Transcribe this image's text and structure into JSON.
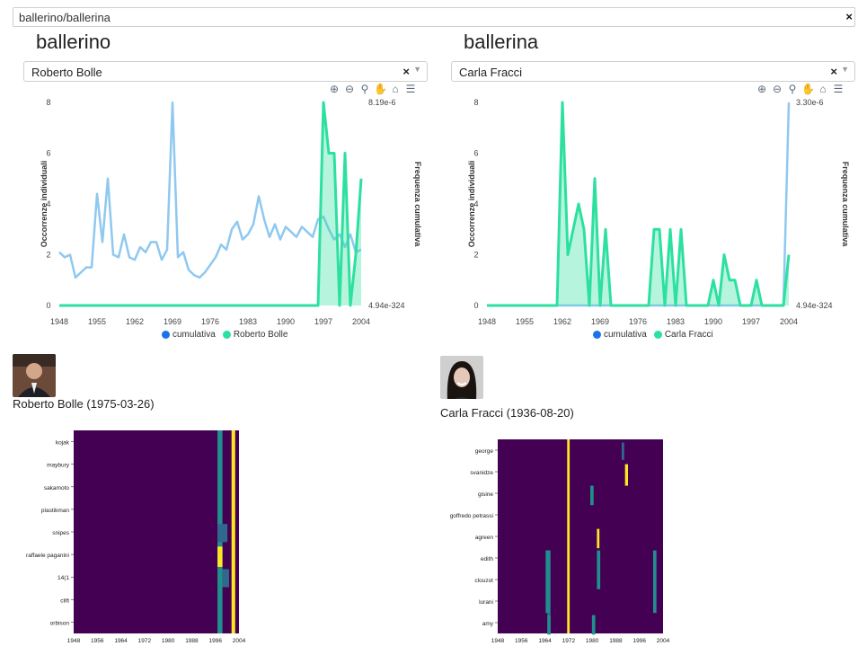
{
  "top_select": {
    "value": "ballerino/ballerina",
    "clear": "×"
  },
  "icons": [
    "zoom-in-icon",
    "zoom-out-icon",
    "zoom-select-icon",
    "pan-icon",
    "home-icon",
    "menu-icon"
  ],
  "colors": {
    "cumulative": "#8fc8f0",
    "series": "#2de0a0",
    "heat_bg": "#440154",
    "heat_mid": "#21908c",
    "heat_hi": "#fde725"
  },
  "left": {
    "title": "ballerino",
    "select": {
      "value": "Roberto Bolle",
      "clear": "×"
    },
    "legend": [
      "cumulativa",
      "Roberto Bolle"
    ],
    "caption": "Roberto Bolle (1975-03-26)"
  },
  "right": {
    "title": "ballerina",
    "select": {
      "value": "Carla Fracci",
      "clear": "×"
    },
    "legend": [
      "cumulativa",
      "Carla Fracci"
    ],
    "caption": "Carla Fracci (1936-08-20)"
  },
  "chart_data": [
    {
      "type": "line",
      "ylabel": "Occorrenze individuali",
      "y2label": "Frequenza cumulativa",
      "ylim": [
        0,
        8
      ],
      "yticks": [
        "0",
        "2",
        "4",
        "6",
        "8"
      ],
      "y2_top": "8.19e-6",
      "y2_bottom": "4.94e-324",
      "xlim": [
        1948,
        2005
      ],
      "xticks": [
        "1948",
        "1955",
        "1962",
        "1969",
        "1976",
        "1983",
        "1990",
        "1997",
        "2004"
      ],
      "series": [
        {
          "name": "cumulativa",
          "x": [
            1948,
            1949,
            1950,
            1951,
            1952,
            1953,
            1954,
            1955,
            1956,
            1957,
            1958,
            1959,
            1960,
            1961,
            1962,
            1963,
            1964,
            1965,
            1966,
            1967,
            1968,
            1969,
            1970,
            1971,
            1972,
            1973,
            1974,
            1975,
            1976,
            1977,
            1978,
            1979,
            1980,
            1981,
            1982,
            1983,
            1984,
            1985,
            1986,
            1987,
            1988,
            1989,
            1990,
            1991,
            1992,
            1993,
            1994,
            1995,
            1996,
            1997,
            1998,
            1999,
            2000,
            2001,
            2002,
            2003,
            2004
          ],
          "y": [
            2.1,
            1.9,
            2.0,
            1.1,
            1.3,
            1.5,
            1.5,
            4.4,
            2.5,
            5.0,
            2.0,
            1.9,
            2.8,
            1.9,
            1.8,
            2.3,
            2.1,
            2.5,
            2.5,
            1.8,
            2.2,
            8.0,
            1.9,
            2.1,
            1.4,
            1.2,
            1.1,
            1.3,
            1.6,
            1.9,
            2.4,
            2.2,
            3.0,
            3.3,
            2.6,
            2.8,
            3.2,
            4.3,
            3.4,
            2.7,
            3.2,
            2.6,
            3.1,
            2.9,
            2.7,
            3.1,
            2.9,
            2.7,
            3.4,
            3.5,
            3.0,
            2.6,
            2.8,
            2.3,
            2.8,
            2.1,
            2.2
          ]
        },
        {
          "name": "Roberto Bolle",
          "x": [
            1948,
            1995,
            1996,
            1997,
            1998,
            1999,
            2000,
            2001,
            2002,
            2003,
            2004
          ],
          "y": [
            0,
            0,
            0,
            8,
            6,
            6,
            0,
            6,
            0,
            2,
            5
          ]
        }
      ]
    },
    {
      "type": "line",
      "ylabel": "Occorrenze individuali",
      "y2label": "Frequenza cumulativa",
      "ylim": [
        0,
        8
      ],
      "yticks": [
        "0",
        "2",
        "4",
        "6",
        "8"
      ],
      "y2_top": "3.30e-6",
      "y2_bottom": "4.94e-324",
      "xlim": [
        1948,
        2005
      ],
      "xticks": [
        "1948",
        "1955",
        "1962",
        "1969",
        "1976",
        "1983",
        "1990",
        "1997",
        "2004"
      ],
      "series": [
        {
          "name": "cumulativa",
          "x": [
            1948,
            2003,
            2004
          ],
          "y": [
            0,
            0,
            8
          ]
        },
        {
          "name": "Carla Fracci",
          "x": [
            1948,
            1954,
            1955,
            1956,
            1957,
            1958,
            1959,
            1960,
            1961,
            1962,
            1963,
            1964,
            1965,
            1966,
            1967,
            1968,
            1969,
            1970,
            1971,
            1972,
            1973,
            1974,
            1975,
            1976,
            1977,
            1978,
            1979,
            1980,
            1981,
            1982,
            1983,
            1984,
            1985,
            1986,
            1987,
            1988,
            1989,
            1990,
            1991,
            1992,
            1993,
            1994,
            1995,
            1996,
            1997,
            1998,
            1999,
            2000,
            2001,
            2002,
            2003,
            2004
          ],
          "y": [
            0,
            0,
            0,
            0,
            0,
            0,
            0,
            0,
            0,
            8,
            2,
            3,
            4,
            3,
            0,
            5,
            0,
            3,
            0,
            0,
            0,
            0,
            0,
            0,
            0,
            0,
            3,
            3,
            0,
            3,
            0,
            3,
            0,
            0,
            0,
            0,
            0,
            1,
            0,
            2,
            1,
            1,
            0,
            0,
            0,
            1,
            0,
            0,
            0,
            0,
            0,
            2
          ]
        }
      ]
    },
    {
      "type": "heatmap",
      "rows": [
        "kojak",
        "maybury",
        "sakamoto",
        "plastikman",
        "snipes",
        "raffaele paganini",
        "14(1",
        "clift",
        "orbison"
      ],
      "xticks": [
        "1948",
        "1956",
        "1964",
        "1972",
        "1980",
        "1988",
        "1996",
        "2004"
      ]
    },
    {
      "type": "heatmap",
      "rows": [
        "george",
        "svanidze",
        "gisine",
        "goffredo petrassi",
        "agreen",
        "edith",
        "clouzot",
        "lurani",
        "amy"
      ],
      "xticks": [
        "1948",
        "1956",
        "1964",
        "1972",
        "1980",
        "1988",
        "1996",
        "2004"
      ]
    }
  ]
}
